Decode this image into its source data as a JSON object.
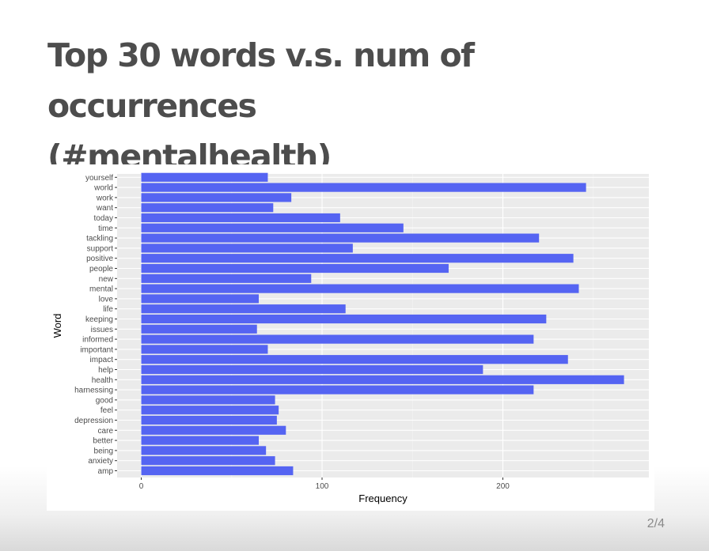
{
  "slide": {
    "title_line1": "Top 30 words v.s. num of occurrences",
    "title_line2": "(#mentalhealth)",
    "page_number": "2/4"
  },
  "chart_data": {
    "type": "bar",
    "orientation": "horizontal",
    "xlabel": "Frequency",
    "ylabel": "Word",
    "xlim": [
      0,
      280
    ],
    "xticks": [
      0,
      100,
      200
    ],
    "grid": true,
    "bar_color": "#5564F2",
    "panel_color": "#EBEBEB",
    "categories": [
      "amp",
      "anxiety",
      "being",
      "better",
      "care",
      "depression",
      "feel",
      "good",
      "harnessing",
      "health",
      "help",
      "impact",
      "important",
      "informed",
      "issues",
      "keeping",
      "life",
      "love",
      "mental",
      "new",
      "people",
      "positive",
      "support",
      "tackling",
      "time",
      "today",
      "want",
      "work",
      "world",
      "yourself"
    ],
    "values": [
      84,
      74,
      69,
      65,
      80,
      75,
      76,
      74,
      217,
      267,
      189,
      236,
      70,
      217,
      64,
      224,
      113,
      65,
      242,
      94,
      170,
      239,
      117,
      220,
      145,
      110,
      73,
      83,
      246,
      70
    ]
  }
}
